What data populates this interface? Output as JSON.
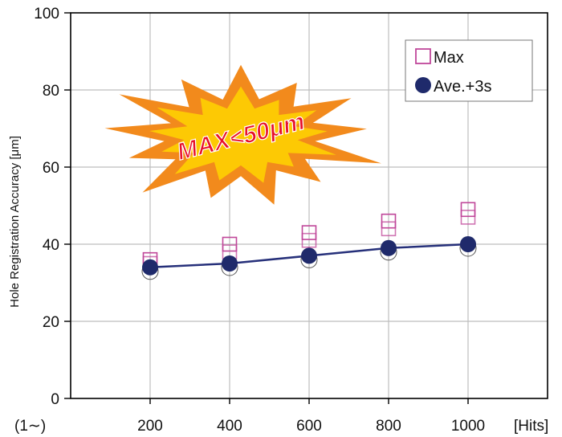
{
  "colors": {
    "max_marker": "#c0479a",
    "avg_marker": "#1f2a6b",
    "avg_line": "#26307a",
    "grid": "#bdbdbd",
    "axis": "#000000",
    "burst_outer": "#f28a1c",
    "burst_inner": "#ffd400",
    "burst_text": "#e8102a"
  },
  "chart_data": {
    "type": "line",
    "title": "",
    "xlabel": "",
    "ylabel": "Hole Registration Accuracy [μm]",
    "x_unit_label": "[Hits]",
    "x_start_label": "(1∼)",
    "categories": [
      "200",
      "400",
      "600",
      "800",
      "1000"
    ],
    "x_values": [
      200,
      400,
      600,
      800,
      1000
    ],
    "xlim": [
      0,
      1200
    ],
    "ylim": [
      0,
      100
    ],
    "y_ticks": [
      0,
      20,
      40,
      60,
      80,
      100
    ],
    "y_tick_labels": [
      "0",
      "20",
      "40",
      "60",
      "80",
      "100"
    ],
    "grid": true,
    "legend_position": "top-right",
    "series": [
      {
        "name": "Max",
        "marker": "open-square",
        "connected": false,
        "points": [
          {
            "x": 200,
            "y": [
              36,
              35
            ]
          },
          {
            "x": 400,
            "y": [
              40,
              38
            ]
          },
          {
            "x": 600,
            "y": [
              43,
              41
            ]
          },
          {
            "x": 800,
            "y": [
              46,
              44
            ]
          },
          {
            "x": 1000,
            "y": [
              49,
              47
            ]
          }
        ]
      },
      {
        "name": "Ave.+3s",
        "marker": "filled-circle",
        "connected": true,
        "values": [
          34,
          35,
          37,
          39,
          40
        ]
      }
    ],
    "annotations": [
      {
        "text": "MAX<50μm",
        "style": "starburst"
      }
    ]
  }
}
